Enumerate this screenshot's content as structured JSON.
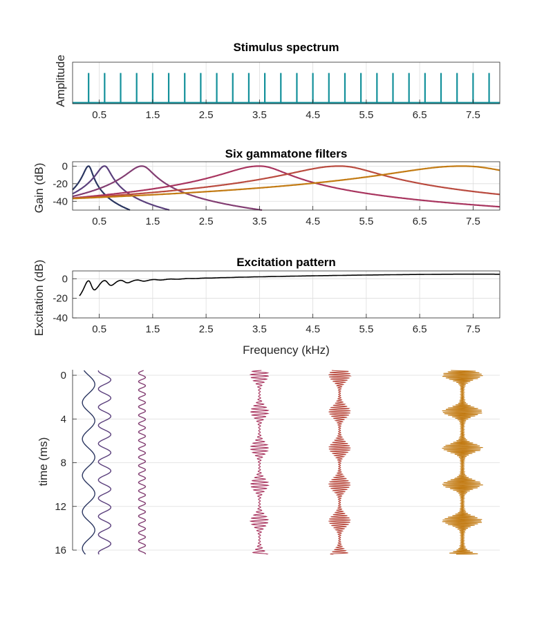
{
  "colors": {
    "spectrum": "#12909a",
    "excitation": "#000000",
    "filters": [
      "#2a3560",
      "#5a3f7c",
      "#823d72",
      "#a8345e",
      "#b94a3e",
      "#c27a12"
    ]
  },
  "chart_data": [
    {
      "type": "bar",
      "title": "Stimulus spectrum",
      "xlabel": "",
      "ylabel": "Amplitude",
      "xlim": [
        0,
        8
      ],
      "ylim": [
        0,
        1
      ],
      "xticks": [
        "0.5",
        "1.5",
        "2.5",
        "3.5",
        "4.5",
        "5.5",
        "6.5",
        "7.5"
      ],
      "harmonic_spacing_khz": 0.3,
      "harmonic_count": 26,
      "harmonic_amplitude": 1,
      "grid": true
    },
    {
      "type": "line",
      "title": "Six gammatone filters",
      "xlabel": "",
      "ylabel": "Gain (dB)",
      "xlim": [
        0,
        8
      ],
      "ylim": [
        -50,
        5
      ],
      "xticks": [
        "0.5",
        "1.5",
        "2.5",
        "3.5",
        "4.5",
        "5.5",
        "6.5",
        "7.5"
      ],
      "yticks": [
        "0",
        "-20",
        "-40"
      ],
      "center_frequencies_khz": [
        0.3,
        0.6,
        1.3,
        3.5,
        5.0,
        7.3
      ],
      "grid": true
    },
    {
      "type": "line",
      "title": "Excitation pattern",
      "xlabel": "Frequency (kHz)",
      "ylabel": "Excitation (dB)",
      "xlim": [
        0,
        8
      ],
      "ylim": [
        -40,
        8
      ],
      "xticks": [
        "0.5",
        "1.5",
        "2.5",
        "3.5",
        "4.5",
        "5.5",
        "6.5",
        "7.5"
      ],
      "yticks": [
        "0",
        "-20",
        "-40"
      ],
      "grid": true
    },
    {
      "type": "line",
      "title": "",
      "xlabel": "",
      "ylabel": "time (ms)",
      "ylim": [
        0,
        16
      ],
      "yticks": [
        "0",
        "4",
        "8",
        "12",
        "16"
      ],
      "fundamental_period_ms": 3.33,
      "grid": true
    }
  ]
}
